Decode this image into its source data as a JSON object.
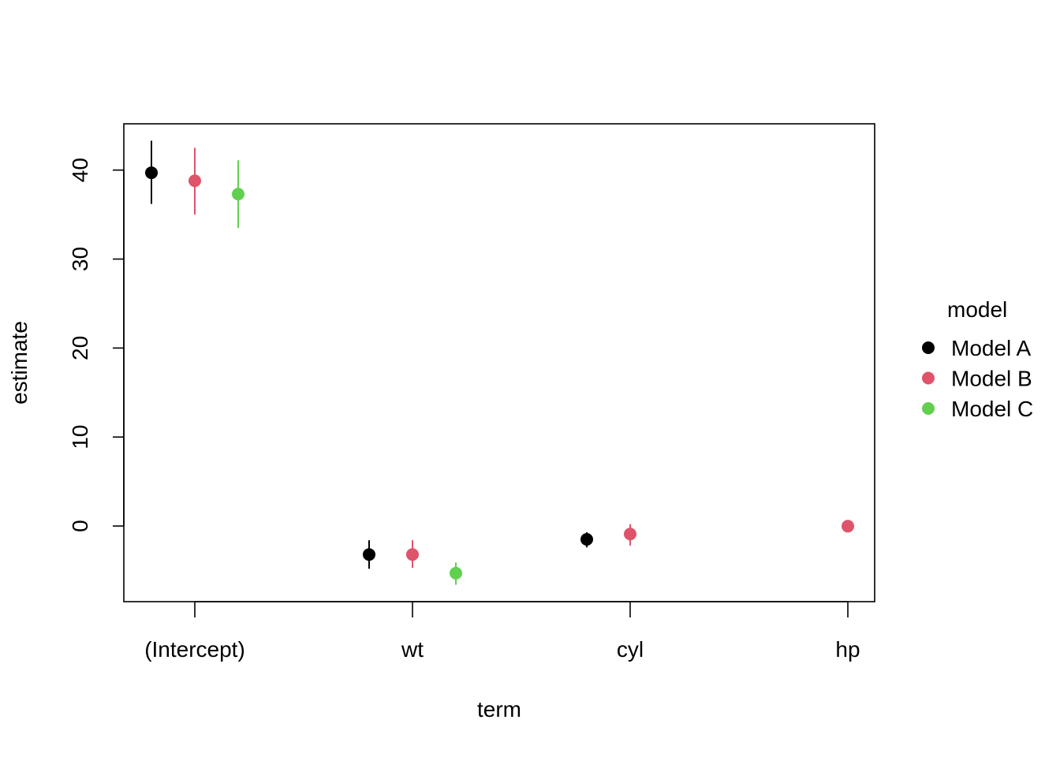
{
  "chart_data": {
    "type": "scatter",
    "subtype": "coefficient plot with confidence intervals",
    "xlabel": "term",
    "ylabel": "estimate",
    "categories": [
      "(Intercept)",
      "wt",
      "cyl",
      "hp"
    ],
    "ylim": [
      -8.5,
      45.2
    ],
    "yticks": [
      0,
      10,
      20,
      30,
      40
    ],
    "grid": false,
    "legend": {
      "title": "model",
      "position": "right"
    },
    "series": [
      {
        "name": "Model A",
        "color": "#000000",
        "points": [
          {
            "term": "(Intercept)",
            "estimate": 39.7,
            "low": 36.2,
            "high": 43.3
          },
          {
            "term": "wt",
            "estimate": -3.2,
            "low": -4.8,
            "high": -1.6
          },
          {
            "term": "cyl",
            "estimate": -1.5,
            "low": -2.4,
            "high": -0.7
          }
        ]
      },
      {
        "name": "Model B",
        "color": "#DF536B",
        "points": [
          {
            "term": "(Intercept)",
            "estimate": 38.8,
            "low": 35.0,
            "high": 42.5
          },
          {
            "term": "wt",
            "estimate": -3.2,
            "low": -4.7,
            "high": -1.6
          },
          {
            "term": "cyl",
            "estimate": -0.9,
            "low": -2.2,
            "high": 0.2
          },
          {
            "term": "hp",
            "estimate": -0.02,
            "low": -0.04,
            "high": 0.0
          }
        ]
      },
      {
        "name": "Model C",
        "color": "#61D04F",
        "points": [
          {
            "term": "(Intercept)",
            "estimate": 37.3,
            "low": 33.5,
            "high": 41.1
          },
          {
            "term": "wt",
            "estimate": -5.3,
            "low": -6.6,
            "high": -4.1
          }
        ]
      }
    ]
  }
}
